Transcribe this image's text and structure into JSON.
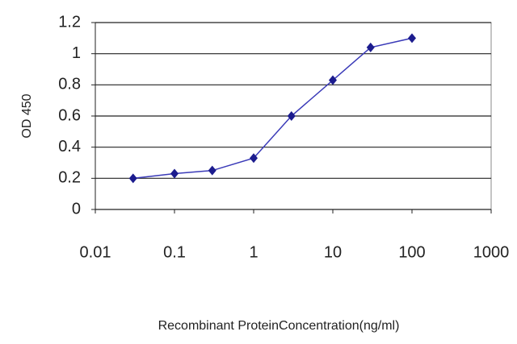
{
  "chart_data": {
    "type": "line",
    "x_label": "Recombinant ProteinConcentration(ng/ml)",
    "y_label": "OD 450",
    "x": [
      0.03,
      0.1,
      0.3,
      1,
      3,
      10,
      30,
      100
    ],
    "series": [
      {
        "color": "#1c1c8e",
        "values": [
          0.2,
          0.23,
          0.25,
          0.33,
          0.6,
          0.83,
          1.04,
          1.1
        ]
      }
    ],
    "xlim": [
      0.01,
      1000
    ],
    "xticks": [
      0.01,
      0.1,
      1,
      10,
      100,
      1000
    ],
    "x_log": true,
    "ylim": [
      0,
      1.2
    ],
    "yticks": [
      0,
      0.2,
      0.4,
      0.6,
      0.8,
      1,
      1.2
    ],
    "grid": true
  }
}
